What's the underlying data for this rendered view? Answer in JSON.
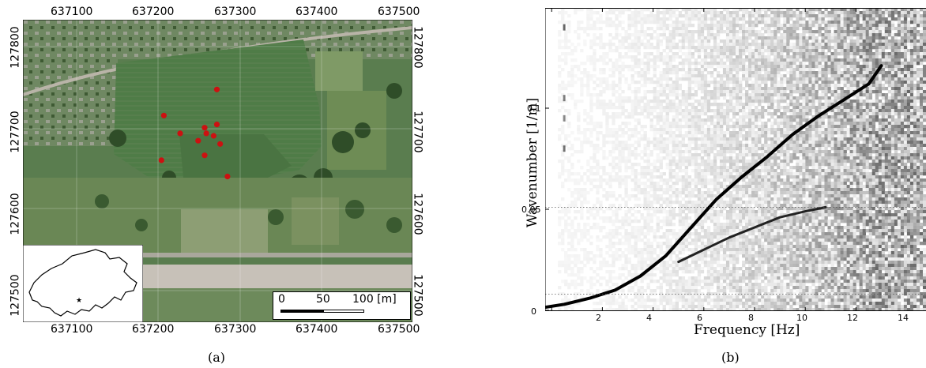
{
  "panel_a": {
    "caption": "(a)",
    "x_ticks": [
      "637100",
      "637200",
      "637300",
      "637400",
      "637500"
    ],
    "y_ticks": [
      "127800",
      "127700",
      "127600",
      "127500"
    ],
    "scalebar": {
      "labels": [
        "0",
        "50",
        "100 [m]"
      ]
    },
    "stations": [
      {
        "x": 637300,
        "y": 127723
      },
      {
        "x": 637235,
        "y": 127691
      },
      {
        "x": 637300,
        "y": 127680
      },
      {
        "x": 637285,
        "y": 127676
      },
      {
        "x": 637255,
        "y": 127669
      },
      {
        "x": 637287,
        "y": 127669
      },
      {
        "x": 637296,
        "y": 127666
      },
      {
        "x": 637277,
        "y": 127660
      },
      {
        "x": 637304,
        "y": 127656
      },
      {
        "x": 637285,
        "y": 127642
      },
      {
        "x": 637232,
        "y": 127636
      },
      {
        "x": 637313,
        "y": 127616
      }
    ],
    "colors": {
      "station": "#cc1111",
      "field": "#4e7a45",
      "river": "#c7c1b8"
    }
  },
  "panel_b": {
    "caption": "(b)",
    "chart_data": {
      "type": "heatmap",
      "xlabel": "Frequency [Hz]",
      "ylabel": "Wavenumber [1/m]",
      "x_ticks": [
        "2",
        "4",
        "6",
        "8",
        "10",
        "12",
        "14"
      ],
      "y_ticks": [
        "0",
        "0.05",
        "0.1"
      ],
      "xlim": [
        0,
        15
      ],
      "ylim": [
        0,
        0.15
      ],
      "grid": "dotted horizontal lines at k = 0.008 and k = 0.051",
      "series": [
        {
          "x": [
            1.5,
            2.5,
            3.5,
            4.5,
            5.5,
            6.5,
            7.5,
            8.5,
            9.5,
            10.5,
            11.5,
            12.5,
            13.5,
            14.5,
            15
          ],
          "values": [
            0.001,
            0.003,
            0.006,
            0.01,
            0.017,
            0.027,
            0.041,
            0.055,
            0.066,
            0.076,
            0.087,
            0.096,
            0.104,
            0.112,
            0.121
          ]
        },
        {
          "x": [
            7.0,
            8.0,
            9.0,
            10.0,
            11.0,
            12.0,
            12.8
          ],
          "values": [
            0.024,
            0.03,
            0.036,
            0.041,
            0.046,
            0.049,
            0.051
          ]
        }
      ]
    }
  }
}
